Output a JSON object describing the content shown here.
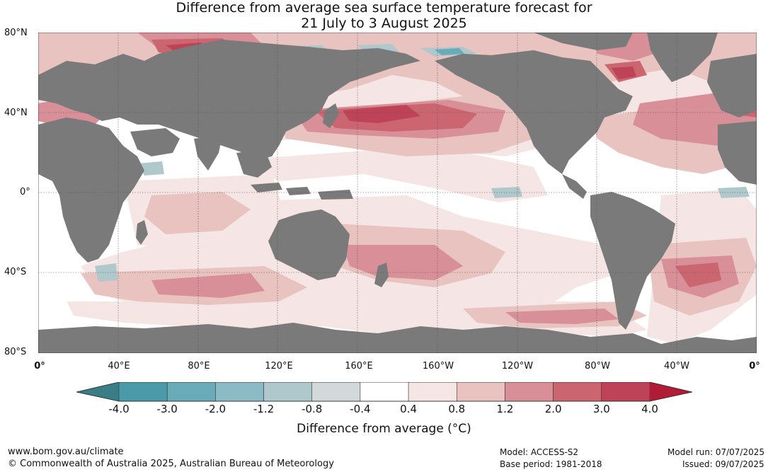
{
  "title_line1": "Difference from average sea surface temperature forecast for",
  "title_line2": "21 July to 3 August 2025",
  "lat_labels": [
    "80°N",
    "40°N",
    "0°",
    "40°S",
    "80°S"
  ],
  "lon_labels": [
    "0°",
    "40°E",
    "80°E",
    "120°E",
    "160°E",
    "160°W",
    "120°W",
    "80°W",
    "40°W",
    "0°"
  ],
  "colorbar": {
    "labels": [
      "-4.0",
      "-3.0",
      "-2.0",
      "-1.2",
      "-0.8",
      "-0.4",
      "0.4",
      "0.8",
      "1.2",
      "2.0",
      "3.0",
      "4.0"
    ],
    "colors": [
      "#4a9aaa",
      "#6aabb8",
      "#8bbcc6",
      "#aec8cc",
      "#d3d8da",
      "#ffffff",
      "#f5e6e5",
      "#e8c3c0",
      "#d98f97",
      "#cb6570",
      "#be4356"
    ],
    "low_extend_color": "#3a7d86",
    "high_extend_color": "#b01c36",
    "title": "Difference from average (°C)"
  },
  "footer": {
    "website": "www.bom.gov.au/climate",
    "copyright": "© Commonwealth of Australia 2025, Australian Bureau of Meteorology",
    "model": "Model: ACCESS-S2",
    "base_period": "Base period: 1981-2018",
    "model_run": "Model run: 07/07/2025",
    "issued": "Issued: 09/07/2025"
  },
  "colors": {
    "land": "#7a7a7a",
    "ocean": "#ffffff"
  }
}
